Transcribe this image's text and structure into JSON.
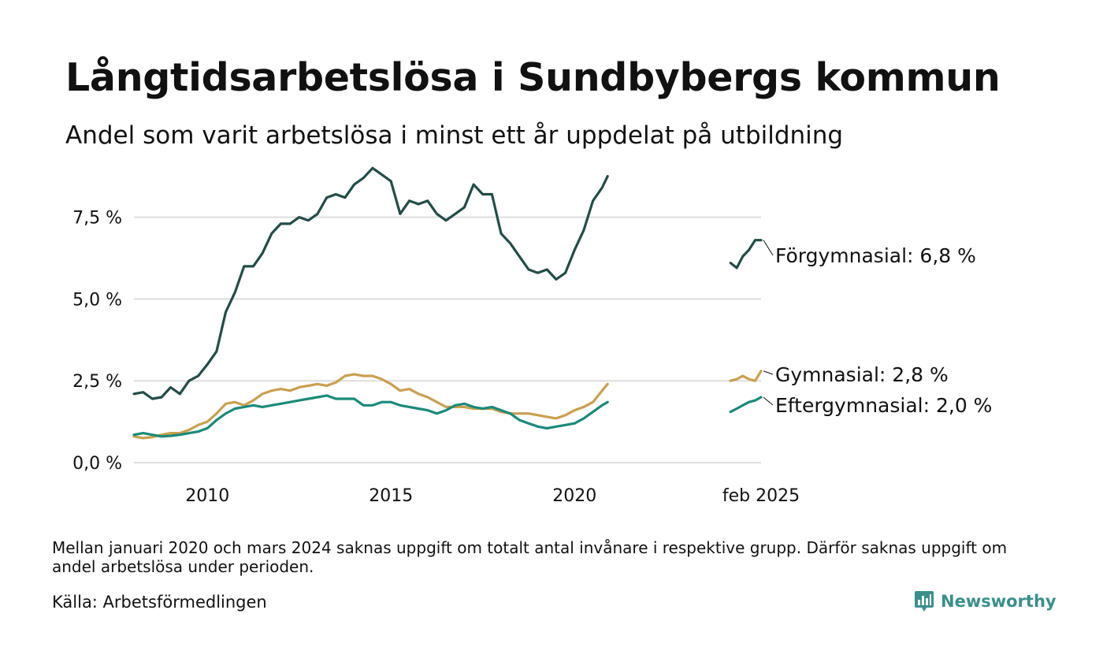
{
  "title": "Långtidsarbetslösa i Sundbybergs kommun",
  "subtitle": "Andel som varit arbetslösa i minst ett år uppdelat på utbildning",
  "footnote": "Mellan januari 2020 och mars 2024 saknas uppgift om totalt antal invånare i respektive grupp. Därför saknas uppgift om andel arbetslösa under perioden.",
  "source": "Källa: Arbetsförmedlingen",
  "brand": {
    "name": "Newsworthy",
    "icon": "bar-chart-speech-bubble-icon",
    "color": "#3a8f8a"
  },
  "chart_data": {
    "type": "line",
    "title": "Långtidsarbetslösa i Sundbybergs kommun",
    "subtitle": "Andel som varit arbetslösa i minst ett år uppdelat på utbildning",
    "xlabel": "",
    "ylabel": "",
    "x_ticks": [
      {
        "x": 2010,
        "label": "2010"
      },
      {
        "x": 2015,
        "label": "2015"
      },
      {
        "x": 2020,
        "label": "2020"
      },
      {
        "x": 2025.08,
        "label": "feb 2025"
      }
    ],
    "y_ticks": [
      {
        "y": 0,
        "label": "0,0 %"
      },
      {
        "y": 2.5,
        "label": "2,5 %"
      },
      {
        "y": 5,
        "label": "5,0 %"
      },
      {
        "y": 7.5,
        "label": "7,5 %"
      }
    ],
    "xlim": [
      2008.0,
      2025.08
    ],
    "ylim": [
      0,
      9.2
    ],
    "grid": "horizontal",
    "legend": "end-of-line labels",
    "series": [
      {
        "name": "Förgymnasial",
        "end_label": "Förgymnasial: 6,8 %",
        "color": "#234d47",
        "segments": [
          [
            [
              2008.0,
              2.1
            ],
            [
              2008.25,
              2.15
            ],
            [
              2008.5,
              1.95
            ],
            [
              2008.75,
              2.0
            ],
            [
              2009.0,
              2.3
            ],
            [
              2009.25,
              2.1
            ],
            [
              2009.5,
              2.5
            ],
            [
              2009.75,
              2.65
            ],
            [
              2010.0,
              3.0
            ],
            [
              2010.25,
              3.4
            ],
            [
              2010.5,
              4.6
            ],
            [
              2010.75,
              5.2
            ],
            [
              2011.0,
              6.0
            ],
            [
              2011.25,
              6.0
            ],
            [
              2011.5,
              6.4
            ],
            [
              2011.75,
              7.0
            ],
            [
              2012.0,
              7.3
            ],
            [
              2012.25,
              7.3
            ],
            [
              2012.5,
              7.5
            ],
            [
              2012.75,
              7.4
            ],
            [
              2013.0,
              7.6
            ],
            [
              2013.25,
              8.1
            ],
            [
              2013.5,
              8.2
            ],
            [
              2013.75,
              8.1
            ],
            [
              2014.0,
              8.5
            ],
            [
              2014.25,
              8.7
            ],
            [
              2014.5,
              9.0
            ],
            [
              2014.75,
              8.8
            ],
            [
              2015.0,
              8.6
            ],
            [
              2015.25,
              7.6
            ],
            [
              2015.5,
              8.0
            ],
            [
              2015.75,
              7.9
            ],
            [
              2016.0,
              8.0
            ],
            [
              2016.25,
              7.6
            ],
            [
              2016.5,
              7.4
            ],
            [
              2016.75,
              7.6
            ],
            [
              2017.0,
              7.8
            ],
            [
              2017.25,
              8.5
            ],
            [
              2017.5,
              8.2
            ],
            [
              2017.75,
              8.2
            ],
            [
              2018.0,
              7.0
            ],
            [
              2018.25,
              6.7
            ],
            [
              2018.5,
              6.3
            ],
            [
              2018.75,
              5.9
            ],
            [
              2019.0,
              5.8
            ],
            [
              2019.25,
              5.9
            ],
            [
              2019.5,
              5.6
            ],
            [
              2019.75,
              5.8
            ],
            [
              2020.0,
              6.5
            ],
            [
              2020.25,
              7.1
            ],
            [
              2020.5,
              8.0
            ],
            [
              2020.75,
              8.4
            ],
            [
              2020.9,
              8.75
            ]
          ],
          [
            [
              2024.25,
              6.1
            ],
            [
              2024.42,
              5.95
            ],
            [
              2024.58,
              6.3
            ],
            [
              2024.75,
              6.5
            ],
            [
              2024.92,
              6.8
            ],
            [
              2025.08,
              6.8
            ]
          ]
        ]
      },
      {
        "name": "Gymnasial",
        "end_label": "Gymnasial: 2,8 %",
        "color": "#c9a050",
        "segments": [
          [
            [
              2008.0,
              0.8
            ],
            [
              2008.25,
              0.75
            ],
            [
              2008.5,
              0.78
            ],
            [
              2008.75,
              0.85
            ],
            [
              2009.0,
              0.9
            ],
            [
              2009.25,
              0.9
            ],
            [
              2009.5,
              1.0
            ],
            [
              2009.75,
              1.15
            ],
            [
              2010.0,
              1.25
            ],
            [
              2010.25,
              1.5
            ],
            [
              2010.5,
              1.8
            ],
            [
              2010.75,
              1.85
            ],
            [
              2011.0,
              1.75
            ],
            [
              2011.25,
              1.9
            ],
            [
              2011.5,
              2.1
            ],
            [
              2011.75,
              2.2
            ],
            [
              2012.0,
              2.25
            ],
            [
              2012.25,
              2.2
            ],
            [
              2012.5,
              2.3
            ],
            [
              2012.75,
              2.35
            ],
            [
              2013.0,
              2.4
            ],
            [
              2013.25,
              2.35
            ],
            [
              2013.5,
              2.45
            ],
            [
              2013.75,
              2.65
            ],
            [
              2014.0,
              2.7
            ],
            [
              2014.25,
              2.65
            ],
            [
              2014.5,
              2.65
            ],
            [
              2014.75,
              2.55
            ],
            [
              2015.0,
              2.4
            ],
            [
              2015.25,
              2.2
            ],
            [
              2015.5,
              2.25
            ],
            [
              2015.75,
              2.1
            ],
            [
              2016.0,
              2.0
            ],
            [
              2016.25,
              1.85
            ],
            [
              2016.5,
              1.7
            ],
            [
              2016.75,
              1.7
            ],
            [
              2017.0,
              1.7
            ],
            [
              2017.25,
              1.65
            ],
            [
              2017.5,
              1.65
            ],
            [
              2017.75,
              1.65
            ],
            [
              2018.0,
              1.55
            ],
            [
              2018.25,
              1.5
            ],
            [
              2018.5,
              1.5
            ],
            [
              2018.75,
              1.5
            ],
            [
              2019.0,
              1.45
            ],
            [
              2019.25,
              1.4
            ],
            [
              2019.5,
              1.35
            ],
            [
              2019.75,
              1.45
            ],
            [
              2020.0,
              1.6
            ],
            [
              2020.25,
              1.7
            ],
            [
              2020.5,
              1.85
            ],
            [
              2020.75,
              2.2
            ],
            [
              2020.9,
              2.4
            ]
          ],
          [
            [
              2024.25,
              2.5
            ],
            [
              2024.42,
              2.55
            ],
            [
              2024.58,
              2.65
            ],
            [
              2024.75,
              2.55
            ],
            [
              2024.92,
              2.5
            ],
            [
              2025.08,
              2.8
            ]
          ]
        ]
      },
      {
        "name": "Eftergymnasial",
        "end_label": "Eftergymnasial: 2,0 %",
        "color": "#1a8a7a",
        "segments": [
          [
            [
              2008.0,
              0.85
            ],
            [
              2008.25,
              0.9
            ],
            [
              2008.5,
              0.85
            ],
            [
              2008.75,
              0.8
            ],
            [
              2009.0,
              0.82
            ],
            [
              2009.25,
              0.85
            ],
            [
              2009.5,
              0.9
            ],
            [
              2009.75,
              0.95
            ],
            [
              2010.0,
              1.05
            ],
            [
              2010.25,
              1.3
            ],
            [
              2010.5,
              1.5
            ],
            [
              2010.75,
              1.65
            ],
            [
              2011.0,
              1.7
            ],
            [
              2011.25,
              1.75
            ],
            [
              2011.5,
              1.7
            ],
            [
              2011.75,
              1.75
            ],
            [
              2012.0,
              1.8
            ],
            [
              2012.25,
              1.85
            ],
            [
              2012.5,
              1.9
            ],
            [
              2012.75,
              1.95
            ],
            [
              2013.0,
              2.0
            ],
            [
              2013.25,
              2.05
            ],
            [
              2013.5,
              1.95
            ],
            [
              2013.75,
              1.95
            ],
            [
              2014.0,
              1.95
            ],
            [
              2014.25,
              1.75
            ],
            [
              2014.5,
              1.75
            ],
            [
              2014.75,
              1.85
            ],
            [
              2015.0,
              1.85
            ],
            [
              2015.25,
              1.75
            ],
            [
              2015.5,
              1.7
            ],
            [
              2015.75,
              1.65
            ],
            [
              2016.0,
              1.6
            ],
            [
              2016.25,
              1.5
            ],
            [
              2016.5,
              1.6
            ],
            [
              2016.75,
              1.75
            ],
            [
              2017.0,
              1.8
            ],
            [
              2017.25,
              1.7
            ],
            [
              2017.5,
              1.65
            ],
            [
              2017.75,
              1.7
            ],
            [
              2018.0,
              1.6
            ],
            [
              2018.25,
              1.5
            ],
            [
              2018.5,
              1.3
            ],
            [
              2018.75,
              1.2
            ],
            [
              2019.0,
              1.1
            ],
            [
              2019.25,
              1.05
            ],
            [
              2019.5,
              1.1
            ],
            [
              2019.75,
              1.15
            ],
            [
              2020.0,
              1.2
            ],
            [
              2020.25,
              1.35
            ],
            [
              2020.5,
              1.55
            ],
            [
              2020.75,
              1.75
            ],
            [
              2020.9,
              1.85
            ]
          ],
          [
            [
              2024.25,
              1.55
            ],
            [
              2024.42,
              1.65
            ],
            [
              2024.58,
              1.75
            ],
            [
              2024.75,
              1.85
            ],
            [
              2024.92,
              1.9
            ],
            [
              2025.08,
              2.0
            ]
          ]
        ]
      }
    ]
  }
}
